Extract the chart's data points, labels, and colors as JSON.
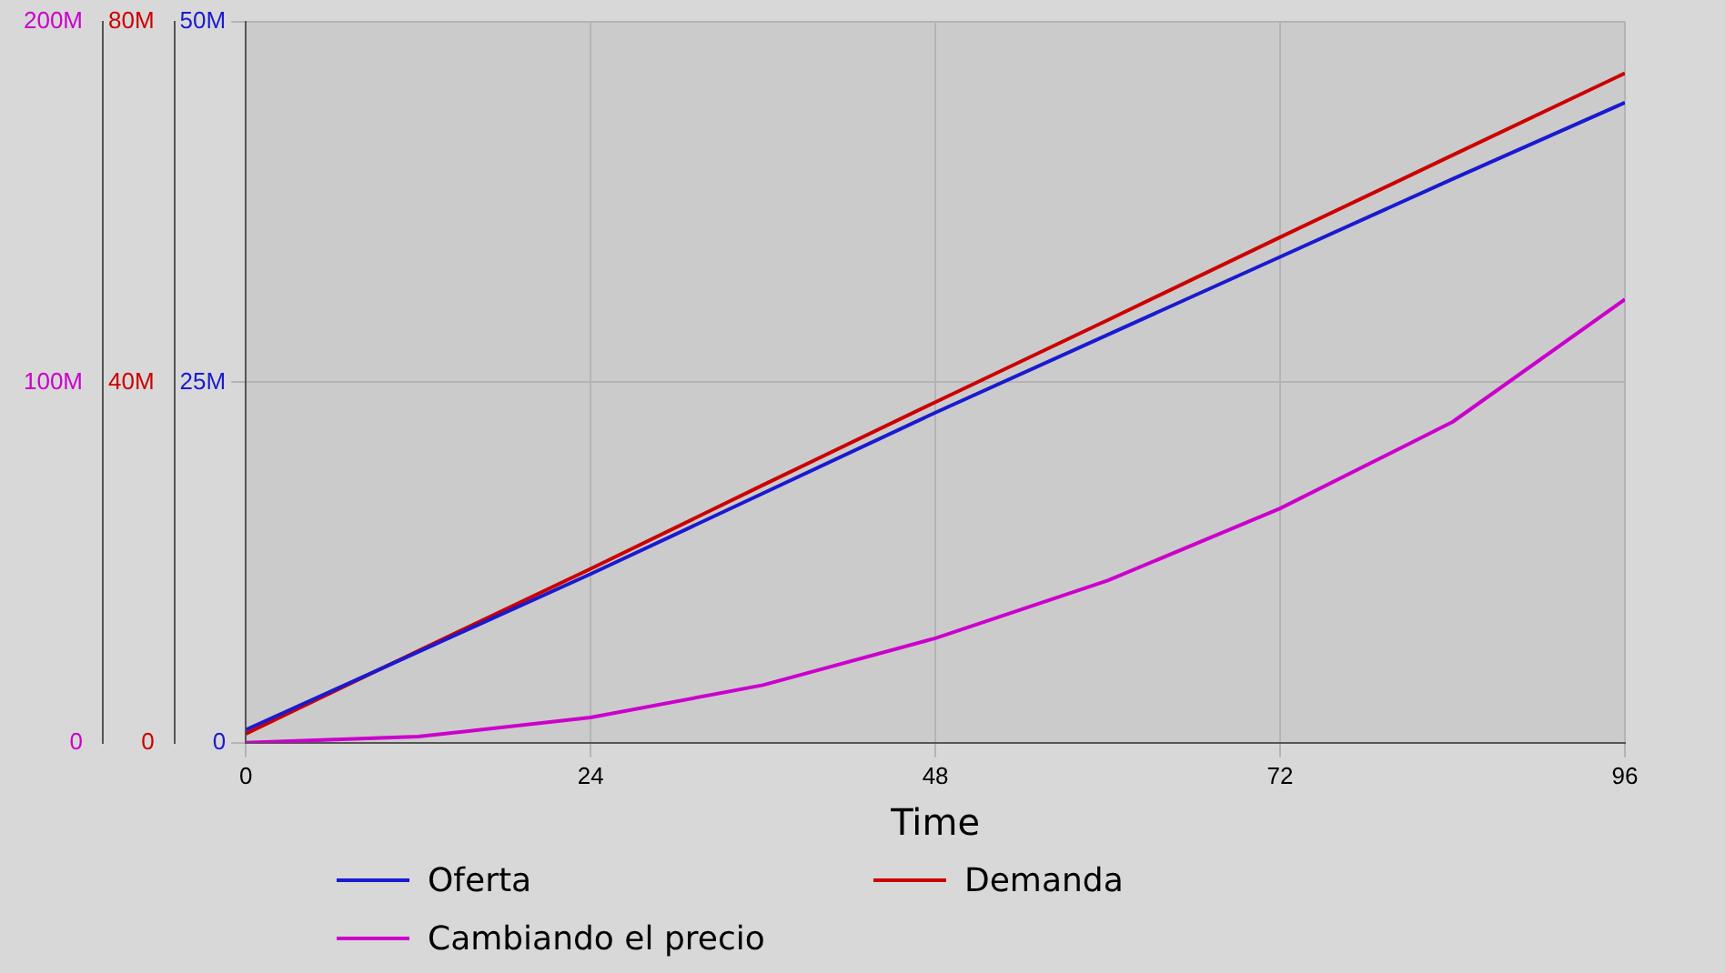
{
  "chart_data": {
    "type": "line",
    "xlabel": "Time",
    "x": [
      0,
      12,
      24,
      36,
      48,
      60,
      72,
      84,
      96
    ],
    "series": [
      {
        "name": "Oferta",
        "color": "#1a1ad0",
        "axis": "y",
        "values": [
          900000,
          6300000,
          11700000,
          17300000,
          22900000,
          28300000,
          33700000,
          39100000,
          44400000
        ]
      },
      {
        "name": "Demanda",
        "color": "#cc0000",
        "axis": "y2",
        "values": [
          1000000,
          10200000,
          19300000,
          28600000,
          37800000,
          46900000,
          56100000,
          65200000,
          74300000
        ]
      },
      {
        "name": "Cambiando el precio",
        "color": "#cc00cc",
        "axis": "y3",
        "values": [
          0,
          1700000,
          7000000,
          16000000,
          29000000,
          45000000,
          65000000,
          89000000,
          123000000
        ]
      }
    ],
    "xlim": [
      0,
      96
    ],
    "xticks": [
      0,
      24,
      48,
      72,
      96
    ],
    "ylim": [
      0,
      50000000
    ],
    "yticks": [
      0,
      {
        "value": 25000000,
        "label": "25M"
      },
      {
        "value": 50000000,
        "label": "50M"
      }
    ],
    "y2lim": [
      0,
      80000000
    ],
    "y2ticks": [
      0,
      {
        "value": 40000000,
        "label": "40M"
      },
      {
        "value": 80000000,
        "label": "80M"
      }
    ],
    "y3lim": [
      0,
      200000000
    ],
    "y3ticks": [
      0,
      {
        "value": 100000000,
        "label": "100M"
      },
      {
        "value": 200000000,
        "label": "200M"
      }
    ],
    "grid": true,
    "legend": "bottom",
    "marker": "none",
    "line_style": "solid"
  }
}
